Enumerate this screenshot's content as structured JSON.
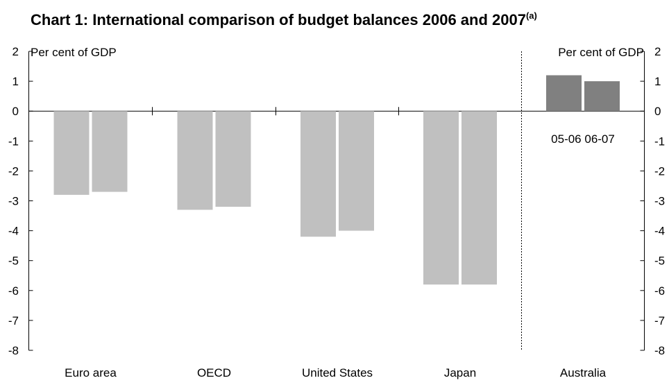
{
  "chart_data": {
    "type": "bar",
    "title": "Chart 1:  International comparison of budget balances 2006 and 2007",
    "title_superscript": "(a)",
    "left_axis_unit": "Per cent of GDP",
    "right_axis_unit": "Per cent of GDP",
    "ylim": [
      -8,
      2
    ],
    "y_ticks": [
      2,
      1,
      0,
      -1,
      -2,
      -3,
      -4,
      -5,
      -6,
      -7,
      -8
    ],
    "grid": false,
    "categories": [
      "Euro area",
      "OECD",
      "United States",
      "Japan",
      "Australia"
    ],
    "series": [
      {
        "values": [
          -2.8,
          -3.3,
          -4.2,
          -5.8,
          1.2
        ]
      },
      {
        "values": [
          -2.7,
          -3.2,
          -4.0,
          -5.8,
          1.0
        ]
      }
    ],
    "australia_bar_labels": [
      "05-06",
      "06-07"
    ],
    "colors": {
      "international_bars": "#c0c0c0",
      "australia_bars": "#808080",
      "axis": "#000000"
    }
  }
}
